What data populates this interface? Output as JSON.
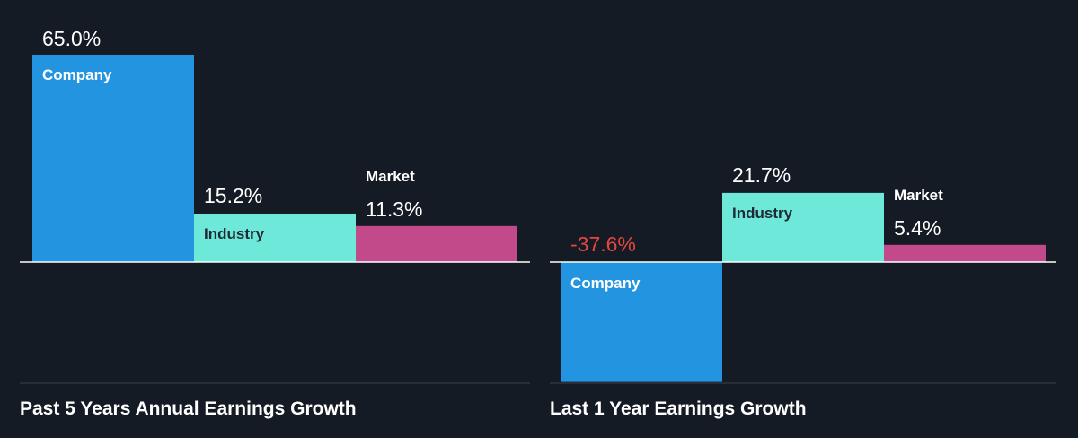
{
  "colors": {
    "background": "#151b24",
    "company": "#2394e0",
    "industry": "#6ee8d8",
    "market": "#c24a8b",
    "positive_text": "#ffffff",
    "negative_text": "#e5463e",
    "baseline": "#ffffff",
    "footer_line": "#3a414c"
  },
  "chart_data": [
    {
      "type": "bar",
      "title": "Past 5 Years Annual Earnings Growth",
      "categories": [
        "Company",
        "Industry",
        "Market"
      ],
      "values": [
        65.0,
        15.2,
        11.3
      ],
      "value_labels": [
        "65.0%",
        "15.2%",
        "11.3%"
      ],
      "unit": "%",
      "ylim": [
        -40,
        65
      ],
      "grid": false,
      "legend": "none"
    },
    {
      "type": "bar",
      "title": "Last 1 Year Earnings Growth",
      "categories": [
        "Company",
        "Industry",
        "Market"
      ],
      "values": [
        -37.6,
        21.7,
        5.4
      ],
      "value_labels": [
        "-37.6%",
        "21.7%",
        "5.4%"
      ],
      "unit": "%",
      "ylim": [
        -40,
        65
      ],
      "grid": false,
      "legend": "none"
    }
  ]
}
